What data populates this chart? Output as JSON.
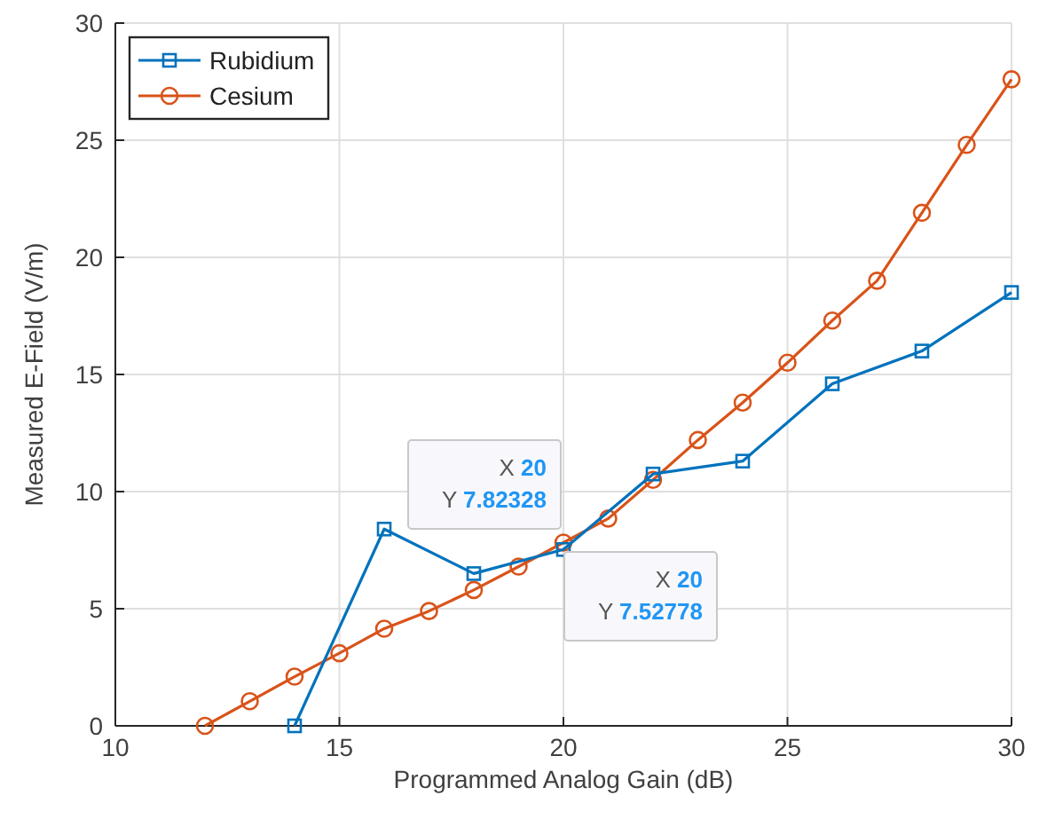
{
  "chart_data": {
    "type": "line",
    "xlabel": "Programmed Analog Gain (dB)",
    "ylabel": "Measured E-Field (V/m)",
    "xlim": [
      10,
      30
    ],
    "xticks": [
      10,
      15,
      20,
      25,
      30
    ],
    "ylim": [
      0,
      30
    ],
    "yticks": [
      0,
      5,
      10,
      15,
      20,
      25,
      30
    ],
    "grid": true,
    "legend": "top left",
    "series": [
      {
        "name": "Rubidium",
        "color": "#0072bd",
        "marker": "square",
        "x": [
          14,
          16,
          18,
          20,
          22,
          24,
          26,
          28,
          30
        ],
        "values": [
          0,
          8.4,
          6.5,
          7.52778,
          10.75,
          11.3,
          14.6,
          16.0,
          18.5
        ]
      },
      {
        "name": "Cesium",
        "color": "#d95319",
        "marker": "circle",
        "x": [
          12,
          13,
          14,
          15,
          16,
          17,
          18,
          19,
          20,
          21,
          22,
          23,
          24,
          25,
          26,
          27,
          28,
          29,
          30
        ],
        "values": [
          0,
          1.05,
          2.1,
          3.1,
          4.15,
          4.9,
          5.8,
          6.8,
          7.82328,
          8.85,
          10.5,
          12.2,
          13.8,
          15.5,
          17.3,
          19.0,
          21.9,
          24.8,
          27.6
        ]
      }
    ],
    "annotations": [
      "X 20",
      "Y 7.82328",
      "X 20",
      "Y 7.52778"
    ]
  }
}
